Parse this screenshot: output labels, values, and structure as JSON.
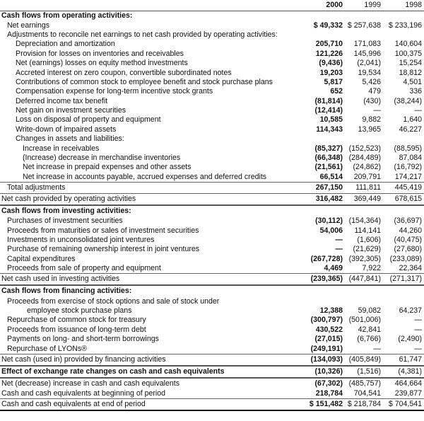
{
  "header": {
    "years": [
      "2000",
      "1999",
      "1998"
    ]
  },
  "rows": [
    {
      "label": "Cash flows from operating activities:",
      "indent": 0,
      "style": "heading",
      "values": [
        "",
        "",
        ""
      ]
    },
    {
      "label": "Net earnings",
      "indent": 1,
      "values": [
        "$  49,332",
        "$ 257,638",
        "$ 233,196"
      ]
    },
    {
      "label": "Adjustments to reconcile net earnings to net cash provided by operating activities:",
      "indent": 1,
      "values": [
        "",
        "",
        ""
      ]
    },
    {
      "label": "Depreciation and amortization",
      "indent": 2,
      "values": [
        "205,710",
        "171,083",
        "140,604"
      ]
    },
    {
      "label": "Provision for losses on inventories and receivables",
      "indent": 2,
      "values": [
        "121,226",
        "145,996",
        "100,375"
      ]
    },
    {
      "label": "Net (earnings) losses on equity method investments",
      "indent": 2,
      "values": [
        "(9,436)",
        "(2,041)",
        "15,254"
      ]
    },
    {
      "label": "Accreted interest on zero coupon, convertible subordinated notes",
      "indent": 2,
      "values": [
        "19,203",
        "19,534",
        "18,812"
      ]
    },
    {
      "label": "Contributions of common stock to employee benefit and stock purchase plans",
      "indent": 2,
      "values": [
        "5,817",
        "5,426",
        "4,501"
      ]
    },
    {
      "label": "Compensation expense for long-term incentive stock grants",
      "indent": 2,
      "values": [
        "652",
        "479",
        "336"
      ]
    },
    {
      "label": "Deferred income tax benefit",
      "indent": 2,
      "values": [
        "(81,814)",
        "(430)",
        "(38,244)"
      ]
    },
    {
      "label": "Net gain on investment securities",
      "indent": 2,
      "values": [
        "(12,414)",
        "—",
        "—"
      ]
    },
    {
      "label": "Loss on disposal of property and equipment",
      "indent": 2,
      "values": [
        "10,585",
        "9,882",
        "1,640"
      ]
    },
    {
      "label": "Write-down of impaired assets",
      "indent": 2,
      "values": [
        "114,343",
        "13,965",
        "46,227"
      ]
    },
    {
      "label": "Changes in assets and liabilities:",
      "indent": 2,
      "values": [
        "",
        "",
        ""
      ]
    },
    {
      "label": "Increase in receivables",
      "indent": 3,
      "values": [
        "(85,327)",
        "(152,523)",
        "(88,595)"
      ]
    },
    {
      "label": "(Increase) decrease in merchandise inventories",
      "indent": 3,
      "values": [
        "(66,348)",
        "(284,489)",
        "87,084"
      ]
    },
    {
      "label": "Net increase in prepaid expenses and other assets",
      "indent": 3,
      "values": [
        "(21,561)",
        "(24,862)",
        "(16,792)"
      ]
    },
    {
      "label": "Net increase in accounts payable, accrued expenses and deferred credits",
      "indent": 3,
      "values": [
        "66,514",
        "209,791",
        "174,217"
      ]
    },
    {
      "label": "Total adjustments",
      "indent": 1,
      "style": "line-top pad",
      "values": [
        "267,150",
        "111,811",
        "445,419"
      ]
    },
    {
      "label": "Net cash provided by operating activities",
      "indent": 0,
      "style": "line-top thick-bottom pad",
      "values": [
        "316,482",
        "369,449",
        "678,615"
      ]
    },
    {
      "label": "Cash flows from investing activities:",
      "indent": 0,
      "style": "heading pad",
      "values": [
        "",
        "",
        ""
      ]
    },
    {
      "label": "Purchases of investment securities",
      "indent": 1,
      "values": [
        "(30,112)",
        "(154,364)",
        "(36,697)"
      ]
    },
    {
      "label": "Proceeds from maturities or sales of investment securities",
      "indent": 1,
      "values": [
        "54,006",
        "114,141",
        "44,260"
      ]
    },
    {
      "label": "Investments in unconsolidated joint ventures",
      "indent": 1,
      "values": [
        "—",
        "(1,606)",
        "(40,475)"
      ]
    },
    {
      "label": "Purchase of remaining ownership interest in joint ventures",
      "indent": 1,
      "values": [
        "—",
        "(21,629)",
        "(27,680)"
      ]
    },
    {
      "label": "Capital expenditures",
      "indent": 1,
      "values": [
        "(267,728)",
        "(392,305)",
        "(233,089)"
      ]
    },
    {
      "label": "Proceeds from sale of property and equipment",
      "indent": 1,
      "values": [
        "4,469",
        "7,922",
        "22,364"
      ]
    },
    {
      "label": "Net cash used in investing activities",
      "indent": 0,
      "style": "line-top thick-bottom pad",
      "values": [
        "(239,365)",
        "(447,841)",
        "(271,317)"
      ]
    },
    {
      "label": "Cash flows from financing activities:",
      "indent": 0,
      "style": "heading pad",
      "values": [
        "",
        "",
        ""
      ]
    },
    {
      "label": "Proceeds from exercise of stock options and sale of stock under",
      "indent": 1,
      "values": [
        "",
        "",
        ""
      ]
    },
    {
      "label": "employee stock purchase plans",
      "indent": 4,
      "values": [
        "12,388",
        "59,082",
        "64,237"
      ]
    },
    {
      "label": "Repurchase of common stock for treasury",
      "indent": 1,
      "values": [
        "(300,797)",
        "(501,006)",
        "—"
      ]
    },
    {
      "label": "Proceeds from issuance of long-term debt",
      "indent": 1,
      "values": [
        "430,522",
        "42,841",
        "—"
      ]
    },
    {
      "label": "Payments on long- and short-term borrowings",
      "indent": 1,
      "values": [
        "(27,015)",
        "(6,766)",
        "(2,490)"
      ]
    },
    {
      "label": "Repurchase of LYONs®",
      "indent": 1,
      "values": [
        "(249,191)",
        "—",
        "—"
      ]
    },
    {
      "label": "Net cash (used in) provided by financing activities",
      "indent": 0,
      "style": "line-top thick-bottom pad",
      "values": [
        "(134,093)",
        "(405,849)",
        "61,747"
      ]
    },
    {
      "label": "Effect of exchange rate changes on cash and cash equivalents",
      "indent": 0,
      "style": "bold thick-bottom pad",
      "values": [
        "(10,326)",
        "(1,516)",
        "(4,381)"
      ]
    },
    {
      "label": "Net (decrease) increase in cash and cash equivalents",
      "indent": 0,
      "style": "pad",
      "values": [
        "(67,302)",
        "(485,757)",
        "464,664"
      ]
    },
    {
      "label": "Cash and cash equivalents at beginning of period",
      "indent": 0,
      "values": [
        "218,784",
        "704,541",
        "239,877"
      ]
    },
    {
      "label": "Cash and cash equivalents at end of period",
      "indent": 0,
      "style": "line-top final pad",
      "values": [
        "$ 151,482",
        "$ 218,784",
        "$ 704,541"
      ]
    }
  ]
}
